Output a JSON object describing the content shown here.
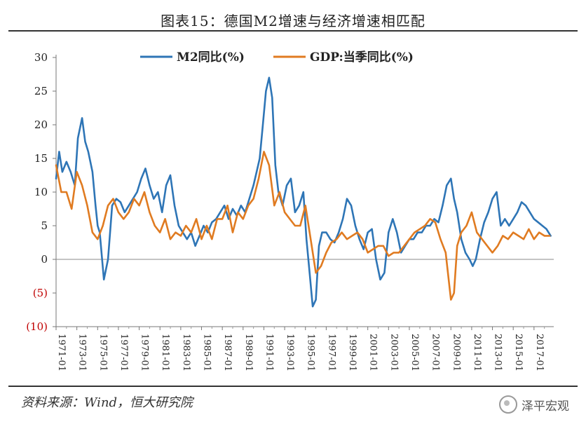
{
  "header": {
    "title": "图表15：德国M2增速与经济增速相匹配"
  },
  "footer": {
    "source": "资料来源：Wind，恒大研究院",
    "watermark": "泽平宏观"
  },
  "chart_data": {
    "type": "line",
    "title": "",
    "xlabel": "",
    "ylabel": "",
    "ylim": [
      -10,
      30
    ],
    "yticks": [
      {
        "value": 30,
        "label": "30"
      },
      {
        "value": 25,
        "label": "25"
      },
      {
        "value": 20,
        "label": "20"
      },
      {
        "value": 15,
        "label": "15"
      },
      {
        "value": 10,
        "label": "10"
      },
      {
        "value": 5,
        "label": "5"
      },
      {
        "value": 0,
        "label": "0"
      },
      {
        "value": -5,
        "label": "(5)"
      },
      {
        "value": -10,
        "label": "(10)"
      }
    ],
    "negative_label_color": "#c00000",
    "xlim": [
      1971.0,
      2018.9
    ],
    "xticks": [
      "1971-01",
      "1973-01",
      "1975-01",
      "1977-01",
      "1979-01",
      "1981-01",
      "1983-01",
      "1985-01",
      "1987-01",
      "1989-01",
      "1991-01",
      "1993-01",
      "1995-01",
      "1997-01",
      "1999-01",
      "2001-01",
      "2003-01",
      "2005-01",
      "2007-01",
      "2009-01",
      "2011-01",
      "2013-01",
      "2015-01",
      "2017-01"
    ],
    "legend_position": "top-center",
    "grid": false,
    "series": [
      {
        "name": "M2同比(%)",
        "color": "#2e75b6",
        "x": [
          1971.0,
          1971.3,
          1971.6,
          1972.0,
          1972.4,
          1972.8,
          1973.1,
          1973.5,
          1973.8,
          1974.1,
          1974.5,
          1974.8,
          1975.0,
          1975.2,
          1975.6,
          1976.0,
          1976.4,
          1976.8,
          1977.2,
          1977.6,
          1978.0,
          1978.4,
          1978.8,
          1979.2,
          1979.6,
          1980.0,
          1980.4,
          1980.8,
          1981.2,
          1981.6,
          1982.0,
          1982.4,
          1982.8,
          1983.2,
          1983.6,
          1984.0,
          1984.4,
          1984.8,
          1985.2,
          1985.6,
          1986.0,
          1986.4,
          1986.8,
          1987.2,
          1987.6,
          1988.0,
          1988.4,
          1988.8,
          1989.2,
          1989.6,
          1990.0,
          1990.3,
          1990.6,
          1990.9,
          1991.2,
          1991.5,
          1991.8,
          1992.1,
          1992.4,
          1992.8,
          1993.2,
          1993.6,
          1994.0,
          1994.4,
          1994.8,
          1995.1,
          1995.4,
          1995.7,
          1996.0,
          1996.3,
          1996.6,
          1997.0,
          1997.4,
          1997.8,
          1998.2,
          1998.6,
          1999.0,
          1999.4,
          1999.8,
          2000.2,
          2000.6,
          2001.0,
          2001.4,
          2001.8,
          2002.2,
          2002.6,
          2003.0,
          2003.4,
          2003.8,
          2004.2,
          2004.6,
          2005.0,
          2005.4,
          2005.8,
          2006.2,
          2006.6,
          2007.0,
          2007.4,
          2007.8,
          2008.2,
          2008.6,
          2009.0,
          2009.3,
          2009.6,
          2010.0,
          2010.4,
          2010.8,
          2011.1,
          2011.4,
          2011.8,
          2012.2,
          2012.6,
          2013.0,
          2013.4,
          2013.8,
          2014.2,
          2014.6,
          2015.0,
          2015.4,
          2015.8,
          2016.2,
          2016.6,
          2017.0,
          2017.4,
          2017.8,
          2018.2,
          2018.6
        ],
        "values": [
          12,
          16,
          13,
          14.5,
          13,
          11,
          18,
          21,
          17.5,
          16,
          13,
          8,
          5,
          4,
          -3,
          0,
          8,
          9,
          8.5,
          7,
          8,
          9,
          10,
          12,
          13.5,
          11,
          9,
          10,
          7,
          11,
          12.5,
          8,
          5,
          4,
          3,
          4,
          2,
          3.5,
          5,
          4,
          5.5,
          6,
          7,
          8,
          6,
          7.5,
          6.5,
          8,
          7,
          9,
          11,
          13,
          15,
          20,
          25,
          27,
          24,
          14,
          10,
          8,
          11,
          12,
          7,
          8,
          10,
          3,
          -2,
          -7,
          -6,
          2,
          4,
          4,
          3,
          2.5,
          4,
          6,
          9,
          8,
          5,
          3,
          1.5,
          4,
          4.5,
          0,
          -3,
          -2,
          4,
          6,
          4,
          1,
          2,
          3,
          3,
          4,
          4,
          5,
          5,
          6,
          5.5,
          8,
          11,
          12,
          9,
          7,
          3,
          1,
          0,
          -1,
          0,
          3,
          5.5,
          7,
          9,
          10,
          5,
          6,
          5,
          6,
          7,
          8.5,
          8,
          7,
          6,
          5.5,
          5,
          4.5,
          3.5
        ]
      },
      {
        "name": "GDP:当季同比(%)",
        "color": "#e07b21",
        "x": [
          1971.0,
          1971.5,
          1972.0,
          1972.5,
          1973.0,
          1973.5,
          1974.0,
          1974.5,
          1975.0,
          1975.5,
          1976.0,
          1976.5,
          1977.0,
          1977.5,
          1978.0,
          1978.5,
          1979.0,
          1979.5,
          1980.0,
          1980.5,
          1981.0,
          1981.5,
          1982.0,
          1982.5,
          1983.0,
          1983.5,
          1984.0,
          1984.5,
          1985.0,
          1985.5,
          1986.0,
          1986.5,
          1987.0,
          1987.5,
          1988.0,
          1988.5,
          1989.0,
          1989.5,
          1990.0,
          1990.5,
          1991.0,
          1991.5,
          1992.0,
          1992.5,
          1993.0,
          1993.5,
          1994.0,
          1994.5,
          1995.0,
          1995.5,
          1996.0,
          1996.5,
          1997.0,
          1997.5,
          1998.0,
          1998.5,
          1999.0,
          1999.5,
          2000.0,
          2000.5,
          2001.0,
          2001.5,
          2002.0,
          2002.5,
          2003.0,
          2003.5,
          2004.0,
          2004.5,
          2005.0,
          2005.5,
          2006.0,
          2006.5,
          2007.0,
          2007.5,
          2008.0,
          2008.5,
          2009.0,
          2009.3,
          2009.6,
          2010.0,
          2010.5,
          2011.0,
          2011.5,
          2012.0,
          2012.5,
          2013.0,
          2013.5,
          2014.0,
          2014.5,
          2015.0,
          2015.5,
          2016.0,
          2016.5,
          2017.0,
          2017.5,
          2018.0,
          2018.5
        ],
        "values": [
          14,
          10,
          10,
          7.5,
          13,
          11,
          8,
          4,
          3,
          5,
          8,
          9,
          7,
          6,
          7,
          9,
          8,
          10,
          7,
          5,
          4,
          6,
          3,
          4,
          3.5,
          5,
          4,
          6,
          3,
          5,
          3,
          6,
          6,
          8,
          4,
          7,
          6,
          8,
          9,
          12,
          16,
          14,
          8,
          10,
          7,
          6,
          5,
          5,
          8,
          3,
          -2,
          -1,
          1,
          2.5,
          3,
          4,
          3,
          3.5,
          4,
          3,
          1,
          1.5,
          2,
          2,
          0.5,
          1,
          1,
          2,
          3,
          4,
          4.5,
          5,
          6,
          5.5,
          3,
          1,
          -6,
          -5,
          2,
          4,
          5,
          7,
          4,
          3,
          2,
          1,
          2,
          3.5,
          3,
          4,
          3.5,
          3,
          4.5,
          3,
          4,
          3.5,
          3.5
        ]
      }
    ]
  }
}
